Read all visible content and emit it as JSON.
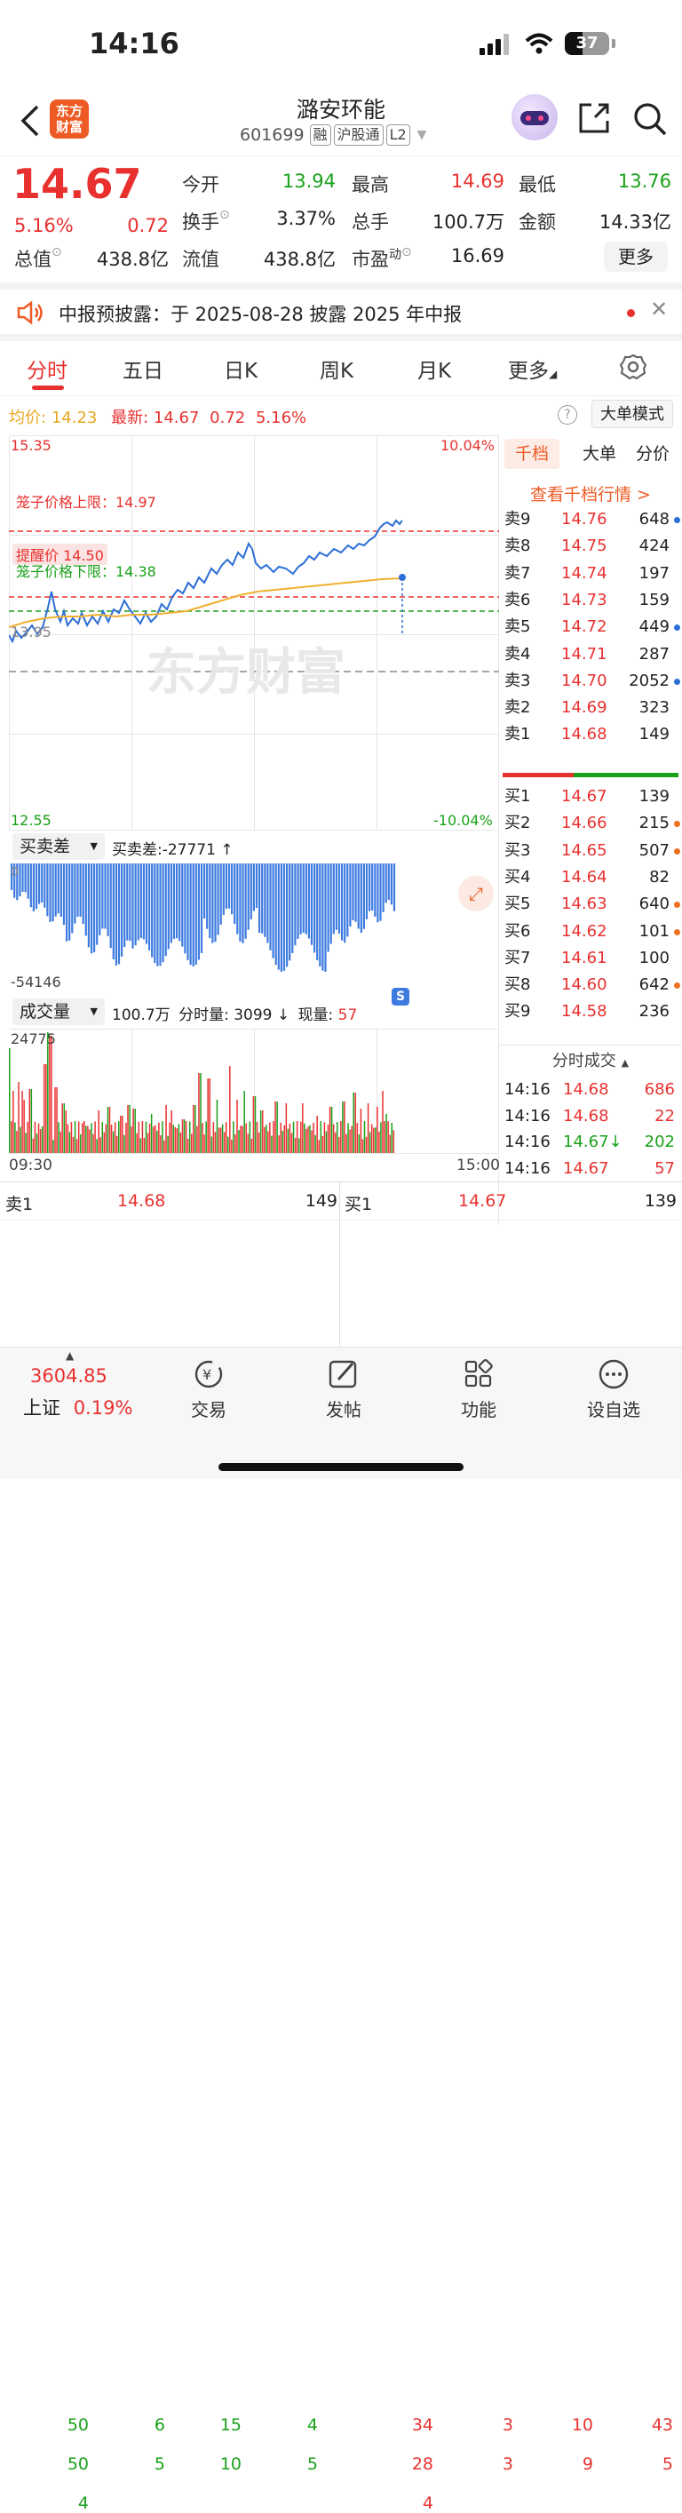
{
  "status_bar": {
    "time": "14:16",
    "battery": "37"
  },
  "header": {
    "logo_line1": "东方",
    "logo_line2": "财富",
    "title": "潞安环能",
    "code": "601699",
    "tags": [
      "融",
      "沪股通",
      "L2"
    ]
  },
  "quote": {
    "price": "14.67",
    "change_pct": "5.16%",
    "change": "0.72",
    "open_label": "今开",
    "open": "13.94",
    "high_label": "最高",
    "high": "14.69",
    "low_label": "最低",
    "low": "13.76",
    "turnover_label": "换手",
    "turnover": "3.37%",
    "volume_label": "总手",
    "volume": "100.7万",
    "amount_label": "金额",
    "amount": "14.33亿",
    "mktcap_label": "总值",
    "mktcap": "438.8亿",
    "float_label": "流值",
    "float": "438.8亿",
    "pe_label": "市盈",
    "pe_sup": "动",
    "pe": "16.69",
    "more_button": "更多"
  },
  "notice": {
    "text": "中报预披露：于 2025-08-28 披露 2025 年中报"
  },
  "tabs": [
    "分时",
    "五日",
    "日K",
    "周K",
    "月K",
    "更多"
  ],
  "summary": {
    "avg_label": "均价:",
    "avg": "14.23",
    "latest_label": "最新:",
    "latest": "14.67",
    "change": "0.72",
    "change_pct": "5.16%",
    "mode_button": "大单模式"
  },
  "chart": {
    "y_top": "15.35",
    "y_bottom": "12.55",
    "pct_top": "10.04%",
    "pct_bottom": "-10.04%",
    "prev_close": "13.95",
    "cage_upper": "笼子价格上限：14.97",
    "alert_price": "提醒价 14.50",
    "cage_lower": "笼子价格下限：14.38",
    "watermark": "东方财富",
    "marker": "S",
    "diff_select": "买卖差",
    "diff_label": "买卖差:-27771 ↑",
    "diff_top": "0",
    "diff_bottom": "-54146",
    "vol_select": "成交量",
    "vol_label_total": "100.7万",
    "vol_label_min": "分时量: 3099 ↓",
    "vol_label_now_prefix": "现量:",
    "vol_label_now": "57",
    "vol_max": "24775",
    "time_start": "09:30",
    "time_end": "15:00"
  },
  "orderbook": {
    "tabs": [
      "千档",
      "大单",
      "分价"
    ],
    "link": "查看千档行情 >",
    "asks": [
      {
        "label": "卖9",
        "price": "14.76",
        "vol": "648",
        "dot": "#2d6fd6"
      },
      {
        "label": "卖8",
        "price": "14.75",
        "vol": "424",
        "dot": ""
      },
      {
        "label": "卖7",
        "price": "14.74",
        "vol": "197",
        "dot": ""
      },
      {
        "label": "卖6",
        "price": "14.73",
        "vol": "159",
        "dot": ""
      },
      {
        "label": "卖5",
        "price": "14.72",
        "vol": "449",
        "dot": "#2d6fd6"
      },
      {
        "label": "卖4",
        "price": "14.71",
        "vol": "287",
        "dot": ""
      },
      {
        "label": "卖3",
        "price": "14.70",
        "vol": "2052",
        "dot": "#2d6fd6"
      },
      {
        "label": "卖2",
        "price": "14.69",
        "vol": "323",
        "dot": ""
      },
      {
        "label": "卖1",
        "price": "14.68",
        "vol": "149",
        "dot": ""
      }
    ],
    "bids": [
      {
        "label": "买1",
        "price": "14.67",
        "vol": "139",
        "dot": ""
      },
      {
        "label": "买2",
        "price": "14.66",
        "vol": "215",
        "dot": "#f07020"
      },
      {
        "label": "买3",
        "price": "14.65",
        "vol": "507",
        "dot": "#f07020"
      },
      {
        "label": "买4",
        "price": "14.64",
        "vol": "82",
        "dot": ""
      },
      {
        "label": "买5",
        "price": "14.63",
        "vol": "640",
        "dot": "#f07020"
      },
      {
        "label": "买6",
        "price": "14.62",
        "vol": "101",
        "dot": "#f07020"
      },
      {
        "label": "买7",
        "price": "14.61",
        "vol": "100",
        "dot": ""
      },
      {
        "label": "买8",
        "price": "14.60",
        "vol": "642",
        "dot": "#f07020"
      },
      {
        "label": "买9",
        "price": "14.58",
        "vol": "236",
        "dot": ""
      }
    ],
    "ticks_title": "分时成交",
    "ticks": [
      {
        "time": "14:16",
        "price": "14.68",
        "vol": "686",
        "color": "#e8312f"
      },
      {
        "time": "14:16",
        "price": "14.68",
        "vol": "22",
        "color": "#e8312f"
      },
      {
        "time": "14:16",
        "price": "14.67↓",
        "vol": "202",
        "color": "#1aa11a"
      },
      {
        "time": "14:16",
        "price": "14.67",
        "vol": "57",
        "color": "#e8312f"
      }
    ]
  },
  "bottom_book": {
    "ask_label": "卖1",
    "ask_price": "14.68",
    "ask_vol": "149",
    "bid_label": "买1",
    "bid_price": "14.67",
    "bid_vol": "139",
    "ask_queue": [
      [
        "50",
        "6",
        "15",
        "4"
      ],
      [
        "50",
        "5",
        "10",
        "5"
      ],
      [
        "4"
      ]
    ],
    "bid_queue": [
      [
        "34",
        "3",
        "10",
        "43"
      ],
      [
        "28",
        "3",
        "9",
        "5"
      ],
      [
        "4"
      ]
    ]
  },
  "tabbar": {
    "index_value": "3604.85",
    "index_name": "上证",
    "index_pct": "0.19%",
    "items": [
      "交易",
      "发帖",
      "功能",
      "设自选"
    ]
  }
}
